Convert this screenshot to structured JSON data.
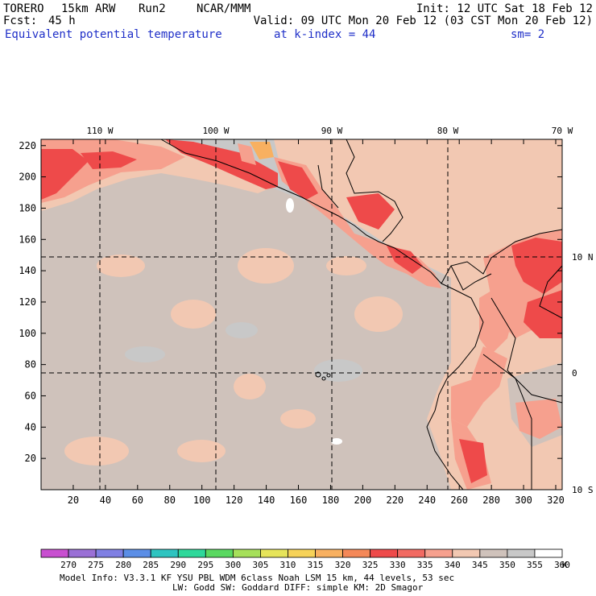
{
  "header": {
    "model": "TORERO",
    "resolution": "15km ARW",
    "run": "Run2",
    "org": "NCAR/MMM",
    "init": "Init: 12 UTC Sat 18 Feb 12",
    "fcst_label": "Fcst:",
    "fcst_value": "45 h",
    "valid": "Valid: 09 UTC Mon 20 Feb 12 (03 CST Mon 20 Feb 12)",
    "field": "Equivalent potential temperature",
    "level": "at k-index =  44",
    "smoothing": "sm= 2"
  },
  "axes": {
    "x_ticks": [
      "20",
      "40",
      "60",
      "80",
      "100",
      "120",
      "140",
      "160",
      "180",
      "200",
      "220",
      "240",
      "260",
      "280",
      "300",
      "320"
    ],
    "y_ticks": [
      "20",
      "40",
      "60",
      "80",
      "100",
      "120",
      "140",
      "160",
      "180",
      "200",
      "220"
    ],
    "lon_labels": [
      "110 W",
      "100 W",
      "90 W",
      "80 W",
      "70 W"
    ],
    "lat_labels": [
      "10 N",
      "0",
      "10 S"
    ]
  },
  "colorbar": {
    "labels": [
      "270",
      "275",
      "280",
      "285",
      "290",
      "295",
      "300",
      "305",
      "310",
      "315",
      "320",
      "325",
      "330",
      "335",
      "340",
      "345",
      "350",
      "355",
      "360"
    ],
    "unit": "K",
    "colors": [
      "#c84fd0",
      "#9a70d6",
      "#7f7fe3",
      "#5b8ee6",
      "#2ec4c0",
      "#2ed89a",
      "#5ad860",
      "#a6e05a",
      "#e6e45a",
      "#f6d258",
      "#f8b060",
      "#f48858",
      "#ee4a4a",
      "#f26a62",
      "#f6a08e",
      "#f2c8b2",
      "#cfc2bb",
      "#c8c8c8",
      "#ffffff"
    ]
  },
  "map_colors": {
    "grey": "#c8c8c8",
    "tan": "#f2c8b2",
    "salmon": "#f6a08e",
    "red": "#ee4a4a",
    "orange": "#f8b060",
    "ocean_mix": "#cfc2bb"
  },
  "footer": {
    "line1": "Model Info: V3.3.1    KF     YSU PBL  WDM 6class  Noah LSM  15 km,   44 levels,   53 sec",
    "line2": "LW: Godd SW: Goddard DIFF: simple KM: 2D Smagor"
  }
}
